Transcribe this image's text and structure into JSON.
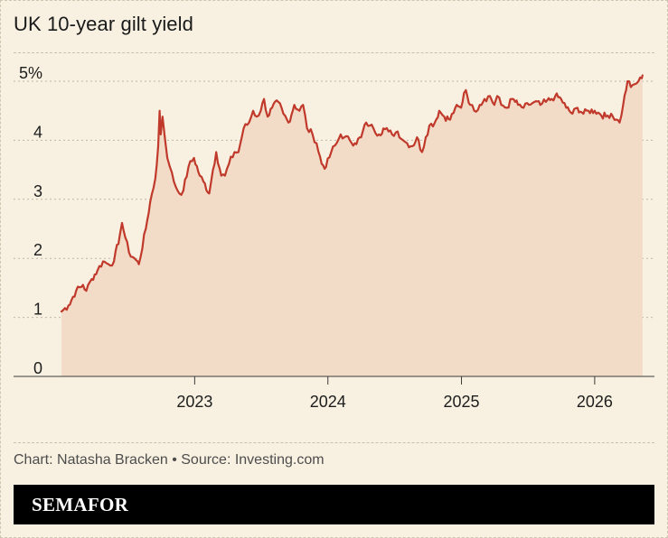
{
  "title": "UK 10-year gilt yield",
  "source_line": "Chart: Natasha Bracken • Source: Investing.com",
  "brand": "SEMAFOR",
  "colors": {
    "background": "#f8f1e1",
    "line": "#c0392b",
    "area": "#f2dcc8",
    "grid": "#bdb6a6",
    "text": "#1d1d1d"
  },
  "chart_data": {
    "type": "area",
    "xlabel": "",
    "ylabel": "",
    "ylim": [
      0,
      5
    ],
    "xlim": [
      "2022-01-01",
      "2026-05-15"
    ],
    "grid": true,
    "y_ticks": [
      {
        "value": 0,
        "label": "0"
      },
      {
        "value": 1,
        "label": "1"
      },
      {
        "value": 2,
        "label": "2"
      },
      {
        "value": 3,
        "label": "3"
      },
      {
        "value": 4,
        "label": "4"
      },
      {
        "value": 5,
        "label": "5%"
      }
    ],
    "x_ticks": [
      {
        "value": "2023-01-01",
        "label": "2023"
      },
      {
        "value": "2024-01-01",
        "label": "2024"
      },
      {
        "value": "2025-01-01",
        "label": "2025"
      },
      {
        "value": "2026-01-01",
        "label": "2026"
      }
    ],
    "series": [
      {
        "x": [
          "2022-01-01",
          "2022-01-20",
          "2022-02-10",
          "2022-03-01",
          "2022-03-10",
          "2022-03-25",
          "2022-04-10",
          "2022-04-25",
          "2022-05-10",
          "2022-05-25",
          "2022-06-10",
          "2022-06-16",
          "2022-06-25",
          "2022-07-05",
          "2022-07-20",
          "2022-08-01",
          "2022-08-20",
          "2022-09-01",
          "2022-09-15",
          "2022-09-23",
          "2022-09-27",
          "2022-09-30",
          "2022-10-05",
          "2022-10-12",
          "2022-10-18",
          "2022-10-25",
          "2022-11-05",
          "2022-11-20",
          "2022-12-01",
          "2022-12-15",
          "2022-12-30",
          "2023-01-15",
          "2023-01-25",
          "2023-02-10",
          "2023-02-20",
          "2023-03-01",
          "2023-03-15",
          "2023-03-25",
          "2023-04-05",
          "2023-04-20",
          "2023-05-01",
          "2023-05-15",
          "2023-05-30",
          "2023-06-10",
          "2023-06-20",
          "2023-07-01",
          "2023-07-10",
          "2023-07-20",
          "2023-08-01",
          "2023-08-18",
          "2023-09-01",
          "2023-09-15",
          "2023-10-01",
          "2023-10-15",
          "2023-10-25",
          "2023-11-05",
          "2023-11-20",
          "2023-12-01",
          "2023-12-15",
          "2023-12-27",
          "2024-01-10",
          "2024-01-25",
          "2024-02-05",
          "2024-02-15",
          "2024-03-01",
          "2024-03-15",
          "2024-04-01",
          "2024-04-15",
          "2024-04-25",
          "2024-05-05",
          "2024-05-20",
          "2024-06-01",
          "2024-06-15",
          "2024-06-25",
          "2024-07-10",
          "2024-07-25",
          "2024-08-05",
          "2024-08-20",
          "2024-09-01",
          "2024-09-15",
          "2024-09-25",
          "2024-10-05",
          "2024-10-20",
          "2024-11-01",
          "2024-11-15",
          "2024-12-01",
          "2024-12-15",
          "2024-12-31",
          "2025-01-08",
          "2025-01-13",
          "2025-01-25",
          "2025-02-05",
          "2025-02-20",
          "2025-03-05",
          "2025-03-20",
          "2025-04-01",
          "2025-04-09",
          "2025-04-20",
          "2025-05-05",
          "2025-05-20",
          "2025-06-05",
          "2025-06-20",
          "2025-07-05",
          "2025-07-20",
          "2025-08-05",
          "2025-08-20",
          "2025-09-05",
          "2025-09-15",
          "2025-10-01",
          "2025-10-15",
          "2025-11-01",
          "2025-11-15",
          "2025-12-01",
          "2025-12-15",
          "2026-01-01",
          "2026-01-15",
          "2026-02-01",
          "2026-02-15",
          "2026-03-01",
          "2026-03-10",
          "2026-03-20",
          "2026-04-01",
          "2026-04-10",
          "2026-04-20",
          "2026-05-01",
          "2026-05-10",
          "2026-05-12"
        ],
        "values": [
          1.1,
          1.2,
          1.45,
          1.55,
          1.45,
          1.65,
          1.8,
          1.95,
          1.9,
          1.95,
          2.4,
          2.6,
          2.35,
          2.1,
          2.0,
          1.9,
          2.5,
          2.95,
          3.35,
          3.9,
          4.5,
          4.1,
          4.4,
          4.0,
          3.7,
          3.55,
          3.3,
          3.1,
          3.15,
          3.55,
          3.7,
          3.4,
          3.3,
          3.1,
          3.5,
          3.8,
          3.4,
          3.4,
          3.6,
          3.8,
          3.8,
          4.2,
          4.3,
          4.5,
          4.4,
          4.5,
          4.7,
          4.4,
          4.55,
          4.65,
          4.45,
          4.3,
          4.6,
          4.5,
          4.6,
          4.2,
          4.1,
          3.95,
          3.6,
          3.55,
          3.8,
          3.95,
          4.1,
          4.05,
          4.0,
          3.95,
          4.05,
          4.3,
          4.25,
          4.2,
          4.1,
          4.2,
          4.15,
          4.1,
          4.15,
          4.0,
          3.95,
          3.9,
          4.05,
          3.8,
          4.05,
          4.25,
          4.3,
          4.5,
          4.4,
          4.35,
          4.55,
          4.55,
          4.8,
          4.85,
          4.6,
          4.5,
          4.6,
          4.7,
          4.75,
          4.6,
          4.75,
          4.6,
          4.55,
          4.7,
          4.6,
          4.55,
          4.6,
          4.65,
          4.6,
          4.65,
          4.7,
          4.75,
          4.7,
          4.55,
          4.45,
          4.55,
          4.45,
          4.5,
          4.5,
          4.45,
          4.4,
          4.45,
          4.35,
          4.3,
          4.6,
          5.0,
          4.9,
          4.95,
          5.0,
          5.05,
          5.1
        ]
      }
    ]
  }
}
